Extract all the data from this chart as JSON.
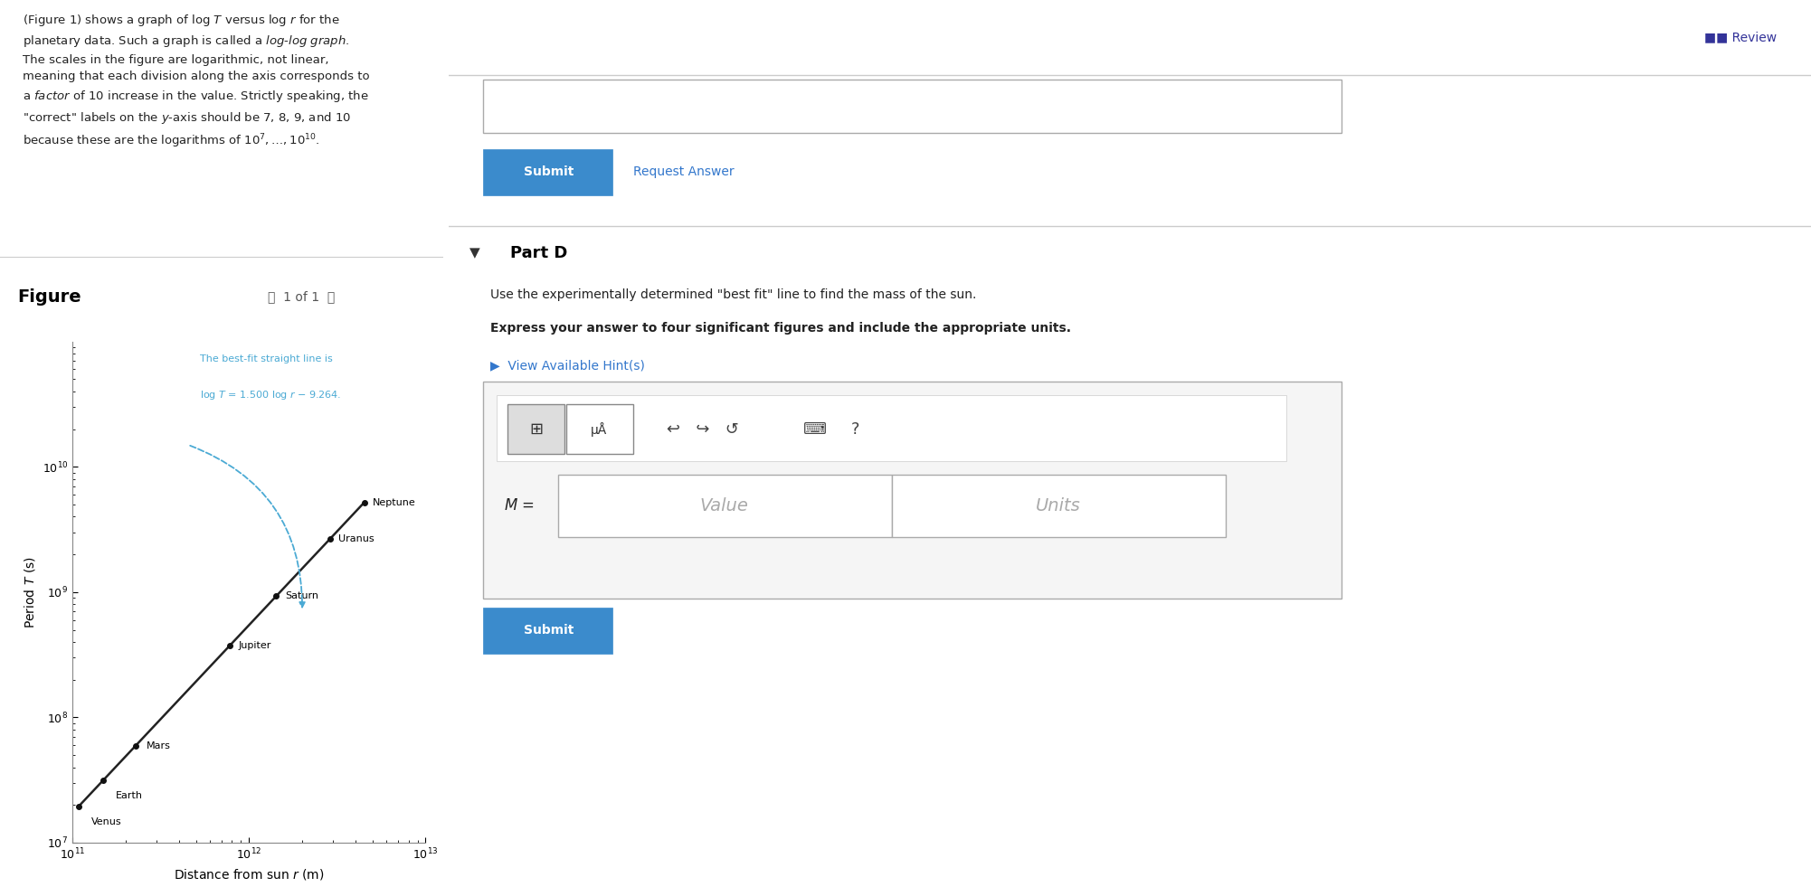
{
  "planets": [
    "Venus",
    "Earth",
    "Mars",
    "Jupiter",
    "Saturn",
    "Uranus",
    "Neptune"
  ],
  "r_values": [
    108200000000.0,
    149600000000.0,
    227900000000.0,
    778300000000.0,
    1427000000000.0,
    2871000000000.0,
    4497000000000.0
  ],
  "T_values": [
    19410000.0,
    31560000.0,
    59360000.0,
    374300000.0,
    929600000.0,
    2651000000.0,
    5200000000.0
  ],
  "xmin": 100000000000.0,
  "xmax": 10000000000000.0,
  "ymin": 10000000.0,
  "ymax": 100000000000.0,
  "line_color": "#222222",
  "dot_color": "#111111",
  "annotation_color": "#4baad4",
  "annotation_text_line1": "The best-fit straight line is",
  "annotation_text_line2": "log $T$ = 1.500 log $r$ − 9.264.",
  "bg_blue": "#d6eef7",
  "bg_white": "#ffffff",
  "separator_color": "#cccccc",
  "submit_color": "#3b8bcc",
  "hint_color": "#3377cc",
  "review_color": "#333399",
  "part_d_text": "Part D",
  "question_text": "Use the experimentally determined \"best fit\" line to find the mass of the sun.",
  "bold_text": "Express your answer to four significant figures and include the appropriate units.",
  "hint_text": "▶  View Available Hint(s)",
  "ylabel": "Period $\\mathit{T}$ (s)",
  "xlabel": "Distance from sun $\\mathit{r}$ (m)"
}
